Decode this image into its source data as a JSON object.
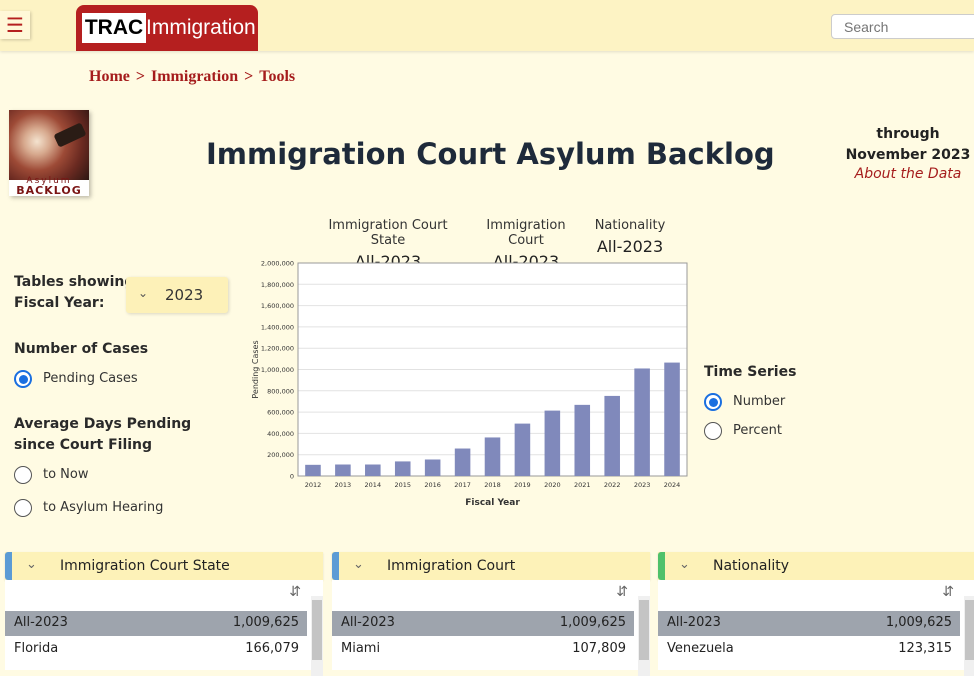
{
  "header": {
    "menu_icon": "hamburger-icon",
    "logo_trac": "TRAC",
    "logo_immigration": "Immigration",
    "search_placeholder": "Search"
  },
  "breadcrumb": {
    "items": [
      "Home",
      "Immigration",
      "Tools"
    ],
    "separator": ">"
  },
  "badge": {
    "line1": "Asylum",
    "line2": "BACKLOG"
  },
  "page": {
    "title": "Immigration Court Asylum Backlog",
    "through_line1": "through",
    "through_line2": "November 2023",
    "about_link": "About the Data"
  },
  "filters": [
    {
      "label": "Immigration Court State",
      "value": "All-2023"
    },
    {
      "label": "Immigration Court",
      "value": "All-2023"
    },
    {
      "label": "Nationality",
      "value": "All-2023"
    }
  ],
  "left_controls": {
    "tables_label_1": "Tables showing",
    "tables_label_2": "Fiscal Year:",
    "fiscal_year": "2023",
    "number_heading": "Number of Cases",
    "pending_option": "Pending Cases",
    "avg_heading_1": "Average Days Pending",
    "avg_heading_2": "since Court Filing",
    "to_now": "to Now",
    "to_hearing": "to Asylum Hearing"
  },
  "time_series": {
    "heading": "Time Series",
    "number_option": "Number",
    "percent_option": "Percent",
    "selected": "Number"
  },
  "chart_data": {
    "type": "bar",
    "title": "",
    "xlabel": "Fiscal Year",
    "ylabel": "Pending Cases",
    "categories": [
      "2012",
      "2013",
      "2014",
      "2015",
      "2016",
      "2017",
      "2018",
      "2019",
      "2020",
      "2021",
      "2022",
      "2023",
      "2024"
    ],
    "values": [
      105000,
      108000,
      108000,
      137000,
      155000,
      258000,
      362000,
      492000,
      614000,
      668000,
      752000,
      1009625,
      1065000
    ],
    "ylim": [
      0,
      2000000
    ],
    "yticks": [
      "0",
      "200,000",
      "400,000",
      "600,000",
      "800,000",
      "1,000,000",
      "1,200,000",
      "1,400,000",
      "1,600,000",
      "1,800,000",
      "2,000,000"
    ],
    "bar_color": "#8089bb",
    "grid": true
  },
  "panels": [
    {
      "title": "Immigration Court State",
      "accent": "#5b9bd5",
      "rows": [
        {
          "name": "All-2023",
          "count": "1,009,625"
        },
        {
          "name": "Florida",
          "count": "166,079"
        }
      ]
    },
    {
      "title": "Immigration Court",
      "accent": "#5b9bd5",
      "rows": [
        {
          "name": "All-2023",
          "count": "1,009,625"
        },
        {
          "name": "Miami",
          "count": "107,809"
        }
      ]
    },
    {
      "title": "Nationality",
      "accent": "#4fc16b",
      "rows": [
        {
          "name": "All-2023",
          "count": "1,009,625"
        },
        {
          "name": "Venezuela",
          "count": "123,315"
        }
      ]
    }
  ]
}
